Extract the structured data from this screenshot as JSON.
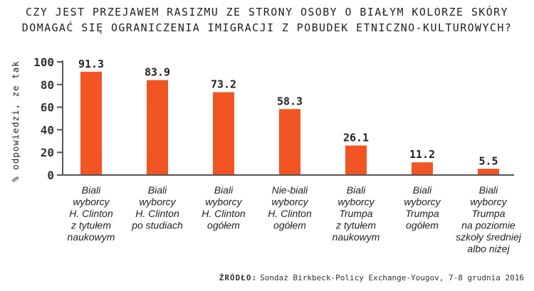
{
  "title_line1": "CZY JEST PRZEJAWEM RASIZMU ZE STRONY OSOBY O BIAŁYM KOLORZE SKÓRY",
  "title_line2": "DOMAGAĆ SIĘ OGRANICZENIA IMIGRACJI Z POBUDEK ETNICZNO-KULTUROWYCH?",
  "source_label": "ŹRÓDŁO:",
  "source_text": "Sondaż Birkbeck-Policy Exchange-Yougov, 7-8 grudnia 2016",
  "colors": {
    "bar": "#f05523",
    "axis": "#555555",
    "text": "#222222"
  },
  "chart_data": {
    "type": "bar",
    "title": "CZY JEST PRZEJAWEM RASIZMU ZE STRONY OSOBY O BIAŁYM KOLORZE SKÓRY DOMAGAĆ SIĘ OGRANICZENIA IMIGRACJI Z POBUDEK ETNICZNO-KULTUROWYCH?",
    "ylabel": "% odpowiedzi, ze tak",
    "xlabel": "",
    "ylim": [
      0,
      100
    ],
    "yticks": [
      "0",
      "20",
      "40",
      "60",
      "80",
      "100"
    ],
    "categories": [
      [
        "Biali",
        "wyborcy",
        "H. Clinton",
        "z tytułem",
        "naukowym"
      ],
      [
        "Biali",
        "wyborcy",
        "H. Clinton",
        "po studiach"
      ],
      [
        "Biali",
        "wyborcy",
        "H. Clinton",
        "ogółem"
      ],
      [
        "Nie-biali",
        "wyborcy",
        "H. Clinton",
        "ogółem"
      ],
      [
        "Biali",
        "wyborcy",
        "Trumpa",
        "z tytułem",
        "naukowym"
      ],
      [
        "Biali",
        "wyborcy",
        "Trumpa",
        "ogółem"
      ],
      [
        "Biali",
        "wyborcy",
        "Trumpa",
        "na poziomie",
        "szkoły średniej",
        "albo niżej"
      ]
    ],
    "values": [
      91.3,
      83.9,
      73.2,
      58.3,
      26.1,
      11.2,
      5.5
    ],
    "value_labels": [
      "91.3",
      "83.9",
      "73.2",
      "58.3",
      "26.1",
      "11.2",
      "5.5"
    ]
  }
}
